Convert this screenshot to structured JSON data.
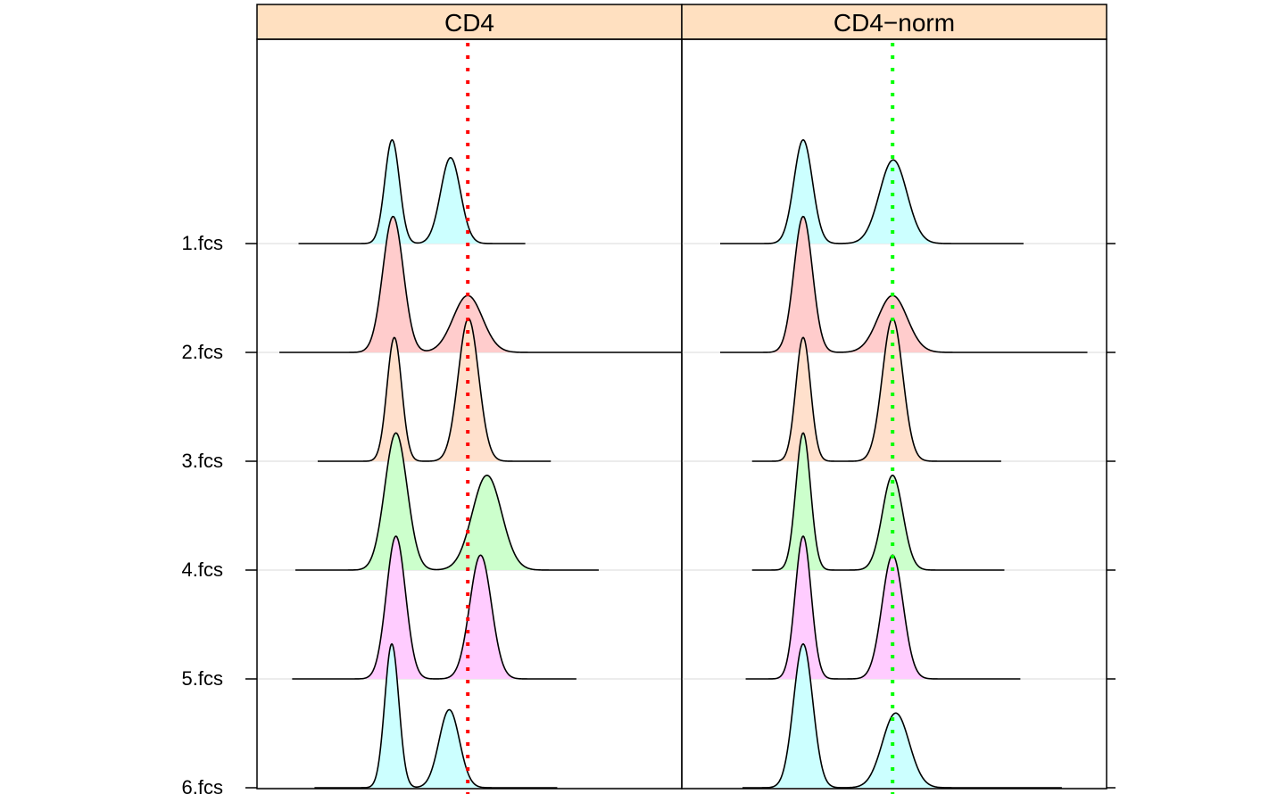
{
  "chart_data": {
    "type": "ridgeline-density",
    "panels": [
      {
        "name": "CD4",
        "line_color": "#ff0000",
        "line_x": 4.1,
        "series": [
          {
            "name": "1.fcs",
            "fill": "#ccffff",
            "range": [
              -1.2,
              5.9
            ],
            "peaks": [
              {
                "mu": 1.73,
                "sd": 0.23,
                "h": 0.93
              },
              {
                "mu": 3.56,
                "sd": 0.31,
                "h": 0.77
              }
            ]
          },
          {
            "name": "2.fcs",
            "fill": "#ffcccc",
            "range": [
              -1.8,
              10.8
            ],
            "peaks": [
              {
                "mu": 1.76,
                "sd": 0.32,
                "h": 1.22
              },
              {
                "mu": 4.1,
                "sd": 0.46,
                "h": 0.51
              }
            ]
          },
          {
            "name": "3.fcs",
            "fill": "#ffe0cc",
            "range": [
              -0.6,
              6.7
            ],
            "peaks": [
              {
                "mu": 1.8,
                "sd": 0.23,
                "h": 1.11
              },
              {
                "mu": 4.12,
                "sd": 0.32,
                "h": 1.28
              }
            ]
          },
          {
            "name": "4.fcs",
            "fill": "#ccffcc",
            "range": [
              -1.3,
              8.2
            ],
            "peaks": [
              {
                "mu": 1.85,
                "sd": 0.35,
                "h": 1.23
              },
              {
                "mu": 4.7,
                "sd": 0.46,
                "h": 0.85
              }
            ]
          },
          {
            "name": "5.fcs",
            "fill": "#ffccff",
            "range": [
              -1.4,
              7.5
            ],
            "peaks": [
              {
                "mu": 1.85,
                "sd": 0.3,
                "h": 1.28
              },
              {
                "mu": 4.5,
                "sd": 0.34,
                "h": 1.11
              }
            ]
          },
          {
            "name": "6.fcs",
            "fill": "#ccffff",
            "range": [
              -0.7,
              6.9
            ],
            "peaks": [
              {
                "mu": 1.72,
                "sd": 0.22,
                "h": 1.29
              },
              {
                "mu": 3.52,
                "sd": 0.32,
                "h": 0.7
              }
            ]
          }
        ]
      },
      {
        "name": "CD4−norm",
        "line_color": "#00ff00",
        "line_x": 4.1,
        "series": [
          {
            "name": "1.fcs",
            "fill": "#ccffff",
            "range": [
              -1.3,
              8.2
            ],
            "peaks": [
              {
                "mu": 1.3,
                "sd": 0.29,
                "h": 0.93
              },
              {
                "mu": 4.12,
                "sd": 0.43,
                "h": 0.75
              }
            ]
          },
          {
            "name": "2.fcs",
            "fill": "#ffcccc",
            "range": [
              -1.3,
              10.2
            ],
            "peaks": [
              {
                "mu": 1.3,
                "sd": 0.29,
                "h": 1.22
              },
              {
                "mu": 4.1,
                "sd": 0.46,
                "h": 0.51
              }
            ]
          },
          {
            "name": "3.fcs",
            "fill": "#ffe0cc",
            "range": [
              -0.3,
              7.5
            ],
            "peaks": [
              {
                "mu": 1.3,
                "sd": 0.23,
                "h": 1.11
              },
              {
                "mu": 4.1,
                "sd": 0.32,
                "h": 1.28
              }
            ]
          },
          {
            "name": "4.fcs",
            "fill": "#ccffcc",
            "range": [
              -0.3,
              7.6
            ],
            "peaks": [
              {
                "mu": 1.3,
                "sd": 0.23,
                "h": 1.23
              },
              {
                "mu": 4.1,
                "sd": 0.32,
                "h": 0.85
              }
            ]
          },
          {
            "name": "5.fcs",
            "fill": "#ffccff",
            "range": [
              -0.5,
              8.1
            ],
            "peaks": [
              {
                "mu": 1.3,
                "sd": 0.25,
                "h": 1.28
              },
              {
                "mu": 4.1,
                "sd": 0.33,
                "h": 1.11
              }
            ]
          },
          {
            "name": "6.fcs",
            "fill": "#ccffff",
            "range": [
              -0.6,
              9.4
            ],
            "peaks": [
              {
                "mu": 1.3,
                "sd": 0.3,
                "h": 1.29
              },
              {
                "mu": 4.2,
                "sd": 0.42,
                "h": 0.67
              }
            ]
          }
        ]
      }
    ],
    "xlim": [
      -2.5,
      10.8
    ],
    "y_labels": [
      "1.fcs",
      "2.fcs",
      "3.fcs",
      "4.fcs",
      "5.fcs",
      "6.fcs"
    ],
    "strip_color": "#ffe0c0",
    "grid": "horizontal baselines only",
    "legend": "none"
  }
}
